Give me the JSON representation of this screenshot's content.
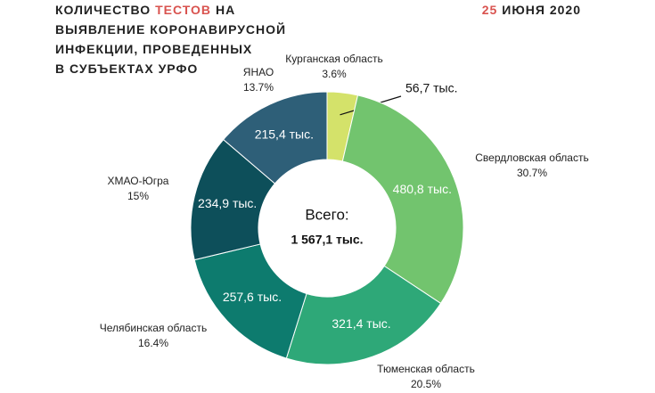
{
  "chart_data": {
    "type": "donut",
    "title": [
      [
        {
          "text": "КОЛИЧЕСТВО",
          "color": "#222222"
        },
        {
          "text": "ТЕСТОВ",
          "color": "#d9534f"
        },
        {
          "text": "НА",
          "color": "#222222"
        }
      ],
      [
        {
          "text": "ВЫЯВЛЕНИЕ КОРОНАВИРУСНОЙ",
          "color": "#222222"
        }
      ],
      [
        {
          "text": "ИНФЕКЦИИ, ПРОВЕДЕННЫХ",
          "color": "#222222"
        }
      ],
      [
        {
          "text": "В СУБЪЕКТАХ УРФО",
          "color": "#222222"
        }
      ]
    ],
    "date": [
      {
        "text": "25",
        "color": "#d9534f"
      },
      {
        "text": "ИЮНЯ 2020",
        "color": "#222222"
      }
    ],
    "categories": [
      "Курганская область",
      "Свердловская область",
      "Тюменская область",
      "Челябинская область",
      "ХМАО-Югра",
      "ЯНАО"
    ],
    "values": [
      56.7,
      480.8,
      321.4,
      257.6,
      234.9,
      215.4
    ],
    "value_labels": [
      "56,7 тыс.",
      "480,8 тыс.",
      "321,4 тыс.",
      "257,6 тыс.",
      "234,9 тыс.",
      "215,4 тыс."
    ],
    "percents": [
      3.6,
      30.7,
      20.5,
      16.4,
      15,
      13.7
    ],
    "percent_labels": [
      "3.6%",
      "30.7%",
      "20.5%",
      "16.4%",
      "15%",
      "13.7%"
    ],
    "colors": [
      "#d4e26a",
      "#72c46e",
      "#2ea878",
      "#0d7b6e",
      "#0d4f5a",
      "#2e5f78"
    ],
    "total_caption": "Всего:",
    "total": {
      "value": 1567.1,
      "label": "1 567,1 тыс."
    }
  }
}
